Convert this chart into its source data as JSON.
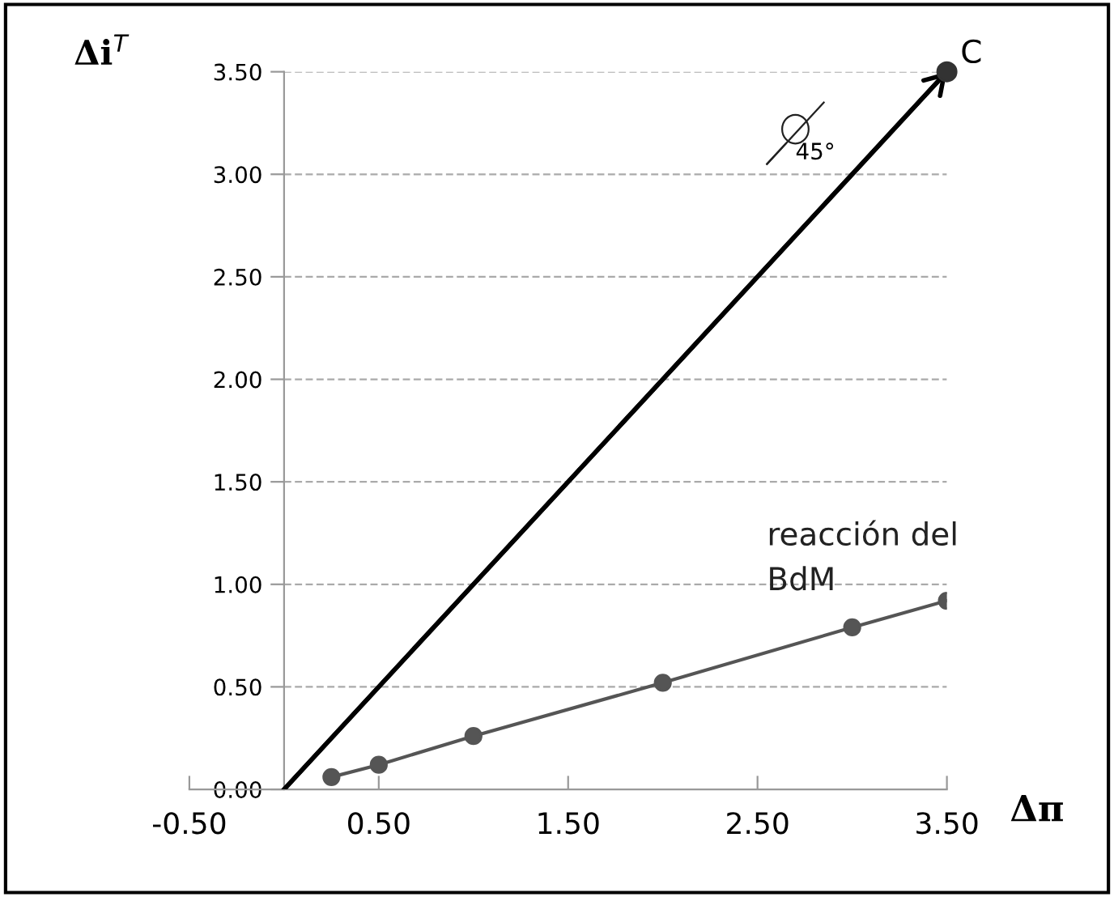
{
  "chart_data": {
    "type": "line",
    "xlabel": "Δπ",
    "ylabel": "Δi$^{T}$",
    "xlim": [
      -0.5,
      3.5
    ],
    "xticks": [
      {
        "value": -0.5,
        "label": "-0.50"
      },
      {
        "value": 0.5,
        "label": "0.50"
      },
      {
        "value": 1.5,
        "label": "1.50"
      },
      {
        "value": 2.5,
        "label": "2.50"
      },
      {
        "value": 3.5,
        "label": "3.50"
      }
    ],
    "ylim": [
      0,
      3.5
    ],
    "yticks": [
      {
        "value": 0,
        "label": "0.00"
      },
      {
        "value": 0.5,
        "label": "0.50"
      },
      {
        "value": 1,
        "label": "1.00"
      },
      {
        "value": 1.5,
        "label": "1.50"
      },
      {
        "value": 2,
        "label": "2.00"
      },
      {
        "value": 2.5,
        "label": "2.50"
      },
      {
        "value": 3,
        "label": "3.00"
      },
      {
        "value": 3.5,
        "label": "3.50"
      }
    ],
    "grid": "y",
    "legend": false,
    "series": [
      {
        "color": "#000000",
        "x": [
          0,
          3.5
        ],
        "values": [
          0,
          3.5
        ],
        "marker": "none"
      },
      {
        "type": "scatter",
        "color": "#333333",
        "x": [
          3.5
        ],
        "values": [
          3.5
        ],
        "marker": "circle"
      },
      {
        "name": "reacción del\nBdM",
        "color": "#555555",
        "x": [
          0.25,
          0.5,
          1.0,
          2.0,
          3.0,
          3.5
        ],
        "values": [
          0.06,
          0.12,
          0.26,
          0.52,
          0.79,
          0.92
        ],
        "marker": "circle"
      }
    ],
    "annotations": [
      {
        "text": "C",
        "x": 3.5,
        "y": 3.5
      },
      {
        "text": "45°",
        "x": 2.7,
        "y": 3.2
      }
    ]
  }
}
